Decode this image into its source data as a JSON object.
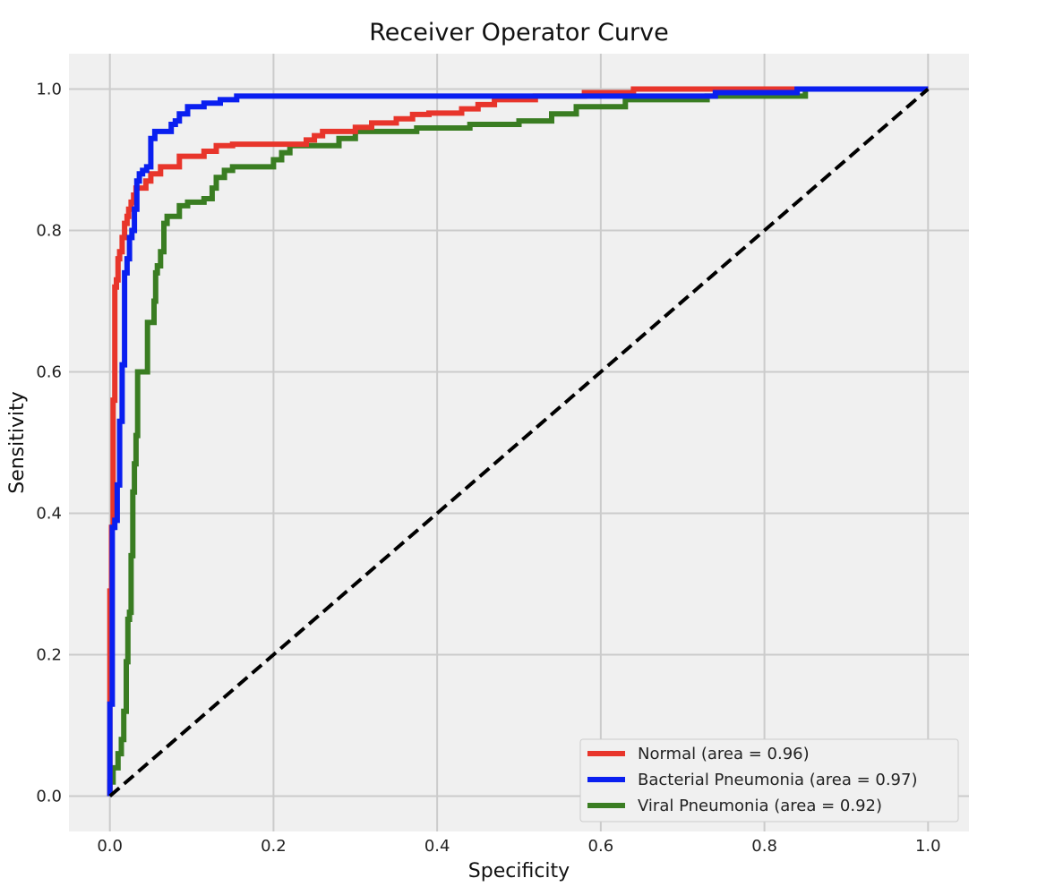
{
  "chart_data": {
    "type": "line",
    "title": "Receiver Operator Curve",
    "xlabel": "Specificity",
    "ylabel": "Sensitivity",
    "xlim": [
      -0.05,
      1.05
    ],
    "ylim": [
      -0.05,
      1.05
    ],
    "xticks": [
      0.0,
      0.2,
      0.4,
      0.6,
      0.8,
      1.0
    ],
    "yticks": [
      0.0,
      0.2,
      0.4,
      0.6,
      0.8,
      1.0
    ],
    "xtick_labels": [
      "0.0",
      "0.2",
      "0.4",
      "0.6",
      "0.8",
      "1.0"
    ],
    "ytick_labels": [
      "0.0",
      "0.2",
      "0.4",
      "0.6",
      "0.8",
      "1.0"
    ],
    "grid": true,
    "background": "#f0f0f0",
    "legend_position": "lower-right",
    "series": [
      {
        "name": "Normal (area = 0.96)",
        "color": "#e8352b",
        "x": [
          0.0,
          0.0,
          0.002,
          0.002,
          0.004,
          0.004,
          0.006,
          0.006,
          0.008,
          0.008,
          0.01,
          0.01,
          0.012,
          0.012,
          0.015,
          0.015,
          0.018,
          0.018,
          0.021,
          0.021,
          0.023,
          0.023,
          0.026,
          0.026,
          0.029,
          0.029,
          0.032,
          0.032,
          0.036,
          0.036,
          0.044,
          0.044,
          0.05,
          0.05,
          0.055,
          0.055,
          0.062,
          0.062,
          0.068,
          0.068,
          0.085,
          0.085,
          0.09,
          0.09,
          0.115,
          0.115,
          0.13,
          0.13,
          0.15,
          0.15,
          0.24,
          0.24,
          0.25,
          0.25,
          0.26,
          0.26,
          0.3,
          0.3,
          0.32,
          0.32,
          0.35,
          0.35,
          0.37,
          0.37,
          0.39,
          0.39,
          0.43,
          0.43,
          0.45,
          0.45,
          0.47,
          0.47,
          0.52,
          0.52,
          0.58,
          0.58,
          0.64,
          0.64,
          0.84,
          0.84,
          1.0
        ],
        "y": [
          0.0,
          0.29,
          0.29,
          0.38,
          0.38,
          0.56,
          0.56,
          0.72,
          0.72,
          0.73,
          0.73,
          0.76,
          0.76,
          0.77,
          0.77,
          0.79,
          0.79,
          0.81,
          0.81,
          0.82,
          0.82,
          0.83,
          0.83,
          0.84,
          0.84,
          0.85,
          0.85,
          0.86,
          0.86,
          0.86,
          0.86,
          0.87,
          0.87,
          0.88,
          0.88,
          0.88,
          0.88,
          0.89,
          0.89,
          0.89,
          0.89,
          0.905,
          0.905,
          0.905,
          0.905,
          0.912,
          0.912,
          0.92,
          0.92,
          0.922,
          0.922,
          0.928,
          0.928,
          0.934,
          0.934,
          0.94,
          0.94,
          0.946,
          0.946,
          0.952,
          0.952,
          0.958,
          0.958,
          0.964,
          0.964,
          0.966,
          0.966,
          0.972,
          0.972,
          0.978,
          0.978,
          0.985,
          0.985,
          0.99,
          0.99,
          0.995,
          0.995,
          1.0,
          1.0,
          1.0,
          1.0
        ]
      },
      {
        "name": "Bacterial Pneumonia (area = 0.97)",
        "color": "#0a1ff0",
        "x": [
          0.0,
          0.0,
          0.003,
          0.003,
          0.006,
          0.006,
          0.009,
          0.009,
          0.012,
          0.012,
          0.015,
          0.015,
          0.018,
          0.018,
          0.021,
          0.021,
          0.024,
          0.024,
          0.027,
          0.027,
          0.03,
          0.03,
          0.033,
          0.033,
          0.036,
          0.036,
          0.04,
          0.04,
          0.045,
          0.045,
          0.05,
          0.05,
          0.055,
          0.055,
          0.075,
          0.075,
          0.08,
          0.08,
          0.085,
          0.085,
          0.095,
          0.095,
          0.115,
          0.115,
          0.135,
          0.135,
          0.155,
          0.155,
          0.74,
          0.74,
          0.84,
          0.84,
          1.0
        ],
        "y": [
          0.0,
          0.13,
          0.13,
          0.38,
          0.38,
          0.39,
          0.39,
          0.44,
          0.44,
          0.53,
          0.53,
          0.61,
          0.61,
          0.74,
          0.74,
          0.76,
          0.76,
          0.79,
          0.79,
          0.8,
          0.8,
          0.83,
          0.83,
          0.87,
          0.87,
          0.88,
          0.88,
          0.885,
          0.885,
          0.89,
          0.89,
          0.93,
          0.93,
          0.94,
          0.94,
          0.95,
          0.95,
          0.955,
          0.955,
          0.965,
          0.965,
          0.975,
          0.975,
          0.98,
          0.98,
          0.985,
          0.985,
          0.99,
          0.99,
          0.995,
          0.995,
          1.0,
          1.0
        ]
      },
      {
        "name": "Viral Pneumonia (area = 0.92)",
        "color": "#3a7d22",
        "x": [
          0.0,
          0.0,
          0.004,
          0.004,
          0.01,
          0.01,
          0.014,
          0.014,
          0.017,
          0.017,
          0.02,
          0.02,
          0.022,
          0.022,
          0.024,
          0.024,
          0.026,
          0.026,
          0.028,
          0.028,
          0.03,
          0.03,
          0.032,
          0.032,
          0.034,
          0.034,
          0.038,
          0.038,
          0.046,
          0.046,
          0.054,
          0.054,
          0.056,
          0.056,
          0.058,
          0.058,
          0.062,
          0.062,
          0.066,
          0.066,
          0.07,
          0.07,
          0.085,
          0.085,
          0.095,
          0.095,
          0.115,
          0.115,
          0.125,
          0.125,
          0.13,
          0.13,
          0.14,
          0.14,
          0.15,
          0.15,
          0.2,
          0.2,
          0.21,
          0.21,
          0.22,
          0.22,
          0.28,
          0.28,
          0.3,
          0.3,
          0.375,
          0.375,
          0.44,
          0.44,
          0.5,
          0.5,
          0.54,
          0.54,
          0.57,
          0.57,
          0.63,
          0.63,
          0.73,
          0.73,
          0.85,
          0.85,
          1.0
        ],
        "y": [
          0.0,
          0.02,
          0.02,
          0.04,
          0.04,
          0.06,
          0.06,
          0.08,
          0.08,
          0.12,
          0.12,
          0.19,
          0.19,
          0.25,
          0.25,
          0.26,
          0.26,
          0.34,
          0.34,
          0.43,
          0.43,
          0.47,
          0.47,
          0.51,
          0.51,
          0.6,
          0.6,
          0.6,
          0.6,
          0.67,
          0.67,
          0.7,
          0.7,
          0.74,
          0.74,
          0.75,
          0.75,
          0.77,
          0.77,
          0.81,
          0.81,
          0.82,
          0.82,
          0.835,
          0.835,
          0.84,
          0.84,
          0.845,
          0.845,
          0.86,
          0.86,
          0.875,
          0.875,
          0.885,
          0.885,
          0.89,
          0.89,
          0.9,
          0.9,
          0.91,
          0.91,
          0.92,
          0.92,
          0.93,
          0.93,
          0.94,
          0.94,
          0.945,
          0.945,
          0.95,
          0.95,
          0.955,
          0.955,
          0.965,
          0.965,
          0.975,
          0.975,
          0.985,
          0.985,
          0.99,
          0.99,
          1.0,
          1.0
        ]
      },
      {
        "name": "",
        "color": "#000000",
        "dashed": true,
        "x": [
          0.0,
          1.0
        ],
        "y": [
          0.0,
          1.0
        ]
      }
    ]
  }
}
